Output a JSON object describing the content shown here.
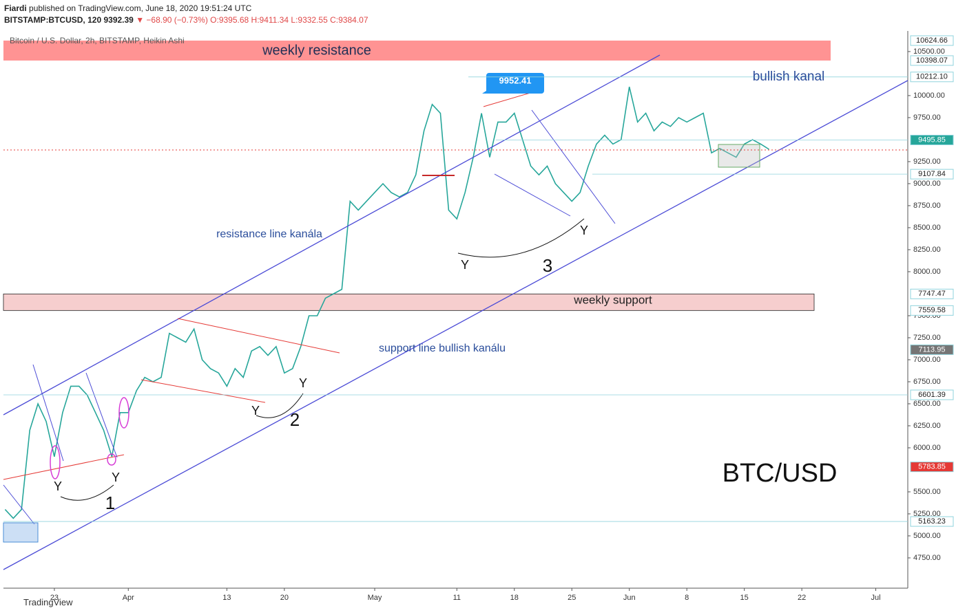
{
  "header": {
    "publisher": "Fiardi",
    "published": "published on TradingView.com, June 18, 2020 19:51:24 UTC",
    "symbol": "BITSTAMP:BTCUSD, 120",
    "last": "9392.39",
    "change": "▼ −68.90 (−0.73%)",
    "ohlc": [
      "O:9395.68",
      "H:9411.34",
      "L:9332.55",
      "C:9384.07"
    ]
  },
  "chart_data": {
    "type": "line",
    "title": "Bitcoin / U.S. Dollar, 2h, BITSTAMP, Heikin Ashi",
    "x": [
      16,
      17,
      18,
      19,
      20,
      21,
      22,
      23,
      24,
      25,
      26,
      27,
      28,
      29,
      30,
      31,
      32,
      33,
      34,
      35,
      36,
      37,
      38,
      39,
      40,
      41,
      42,
      43,
      44,
      45,
      46,
      47,
      48,
      49,
      50,
      51,
      52,
      53,
      54,
      55,
      56,
      57,
      58,
      59,
      60,
      61,
      62,
      63,
      64,
      65,
      66,
      67,
      68,
      69,
      70,
      71,
      72,
      73,
      74,
      75,
      76,
      77,
      78,
      79,
      80,
      81,
      82,
      83,
      84,
      85,
      86,
      87,
      88,
      89,
      90,
      91,
      92,
      93,
      94,
      95,
      96,
      97,
      98,
      99,
      100,
      101,
      102,
      103,
      104,
      105,
      106,
      107,
      108,
      109
    ],
    "values": [
      5300,
      5200,
      5300,
      6200,
      6500,
      6300,
      5900,
      6400,
      6700,
      6700,
      6600,
      6400,
      6200,
      5900,
      6400,
      6400,
      6650,
      6800,
      6750,
      6800,
      7300,
      7250,
      7200,
      7350,
      7000,
      6900,
      6850,
      6700,
      6900,
      6800,
      7100,
      7150,
      7050,
      7150,
      6850,
      6900,
      7150,
      7500,
      7500,
      7700,
      7750,
      7800,
      8800,
      8700,
      8800,
      8900,
      9000,
      8900,
      8850,
      8900,
      9100,
      9600,
      9900,
      9800,
      8700,
      8600,
      8900,
      9300,
      9800,
      9300,
      9700,
      9700,
      9800,
      9500,
      9200,
      9100,
      9200,
      9000,
      8900,
      8800,
      8900,
      9200,
      9450,
      9550,
      9450,
      9500,
      10100,
      9700,
      9800,
      9600,
      9700,
      9650,
      9750,
      9700,
      9750,
      9800,
      9350,
      9400,
      9350,
      9300,
      9450,
      9500,
      9450,
      9390
    ],
    "color": "#26a69a",
    "xlim": [
      15.8,
      125.9
    ],
    "xticks": [
      {
        "value": 22,
        "label": "23"
      },
      {
        "value": 31,
        "label": "Apr"
      },
      {
        "value": 43,
        "label": "13"
      },
      {
        "value": 50,
        "label": "20"
      },
      {
        "value": 61,
        "label": "May"
      },
      {
        "value": 71,
        "label": "11"
      },
      {
        "value": 78,
        "label": "18"
      },
      {
        "value": 85,
        "label": "25"
      },
      {
        "value": 92,
        "label": "Jun"
      },
      {
        "value": 99,
        "label": "8"
      },
      {
        "value": 106,
        "label": "15"
      },
      {
        "value": 113,
        "label": "22"
      },
      {
        "value": 122,
        "label": "Jul"
      }
    ],
    "ylim": [
      4406,
      10734
    ],
    "yticks": [
      {
        "value": 4750,
        "label": "4750.00"
      },
      {
        "value": 5000,
        "label": "5000.00"
      },
      {
        "value": 5250,
        "label": "5250.00"
      },
      {
        "value": 5500,
        "label": "5500.00"
      },
      {
        "value": 6000,
        "label": "6000.00"
      },
      {
        "value": 6250,
        "label": "6250.00"
      },
      {
        "value": 6500,
        "label": "6500.00"
      },
      {
        "value": 6750,
        "label": "6750.00"
      },
      {
        "value": 7000,
        "label": "7000.00"
      },
      {
        "value": 7250,
        "label": "7250.00"
      },
      {
        "value": 7500,
        "label": "7500.00"
      },
      {
        "value": 8000,
        "label": "8000.00"
      },
      {
        "value": 8250,
        "label": "8250.00"
      },
      {
        "value": 8500,
        "label": "8500.00"
      },
      {
        "value": 8750,
        "label": "8750.00"
      },
      {
        "value": 9000,
        "label": "9000.00"
      },
      {
        "value": 9250,
        "label": "9250.00"
      },
      {
        "value": 9750,
        "label": "9750.00"
      },
      {
        "value": 10000,
        "label": "10000.00"
      },
      {
        "value": 10500,
        "label": "10500.00"
      }
    ],
    "price_labels": [
      {
        "value": 10624.66,
        "label": "10624.66"
      },
      {
        "value": 10398.07,
        "label": "10398.07"
      },
      {
        "value": 10212.1,
        "label": "10212.10"
      },
      {
        "value": 9495.85,
        "label": "9495.85"
      },
      {
        "value": 9107.84,
        "label": "9107.84"
      },
      {
        "value": 7747.47,
        "label": "7747.47"
      },
      {
        "value": 7559.58,
        "label": "7559.58"
      },
      {
        "value": 7113.95,
        "label": "7113.95"
      },
      {
        "value": 6601.39,
        "label": "6601.39"
      },
      {
        "value": 5783.85,
        "label": "5783.85"
      },
      {
        "value": 5163.23,
        "label": "5163.23"
      }
    ],
    "annotations": [
      "weekly resistance",
      "bullish kanal",
      "9952.41",
      "resistance line kanála",
      "weekly support",
      "support line bullish kanálu",
      "BTC/USD",
      "Y",
      "Y",
      "Y",
      "Y",
      "Y",
      "Y",
      "1",
      "2",
      "3"
    ]
  },
  "footer": "TradingView"
}
